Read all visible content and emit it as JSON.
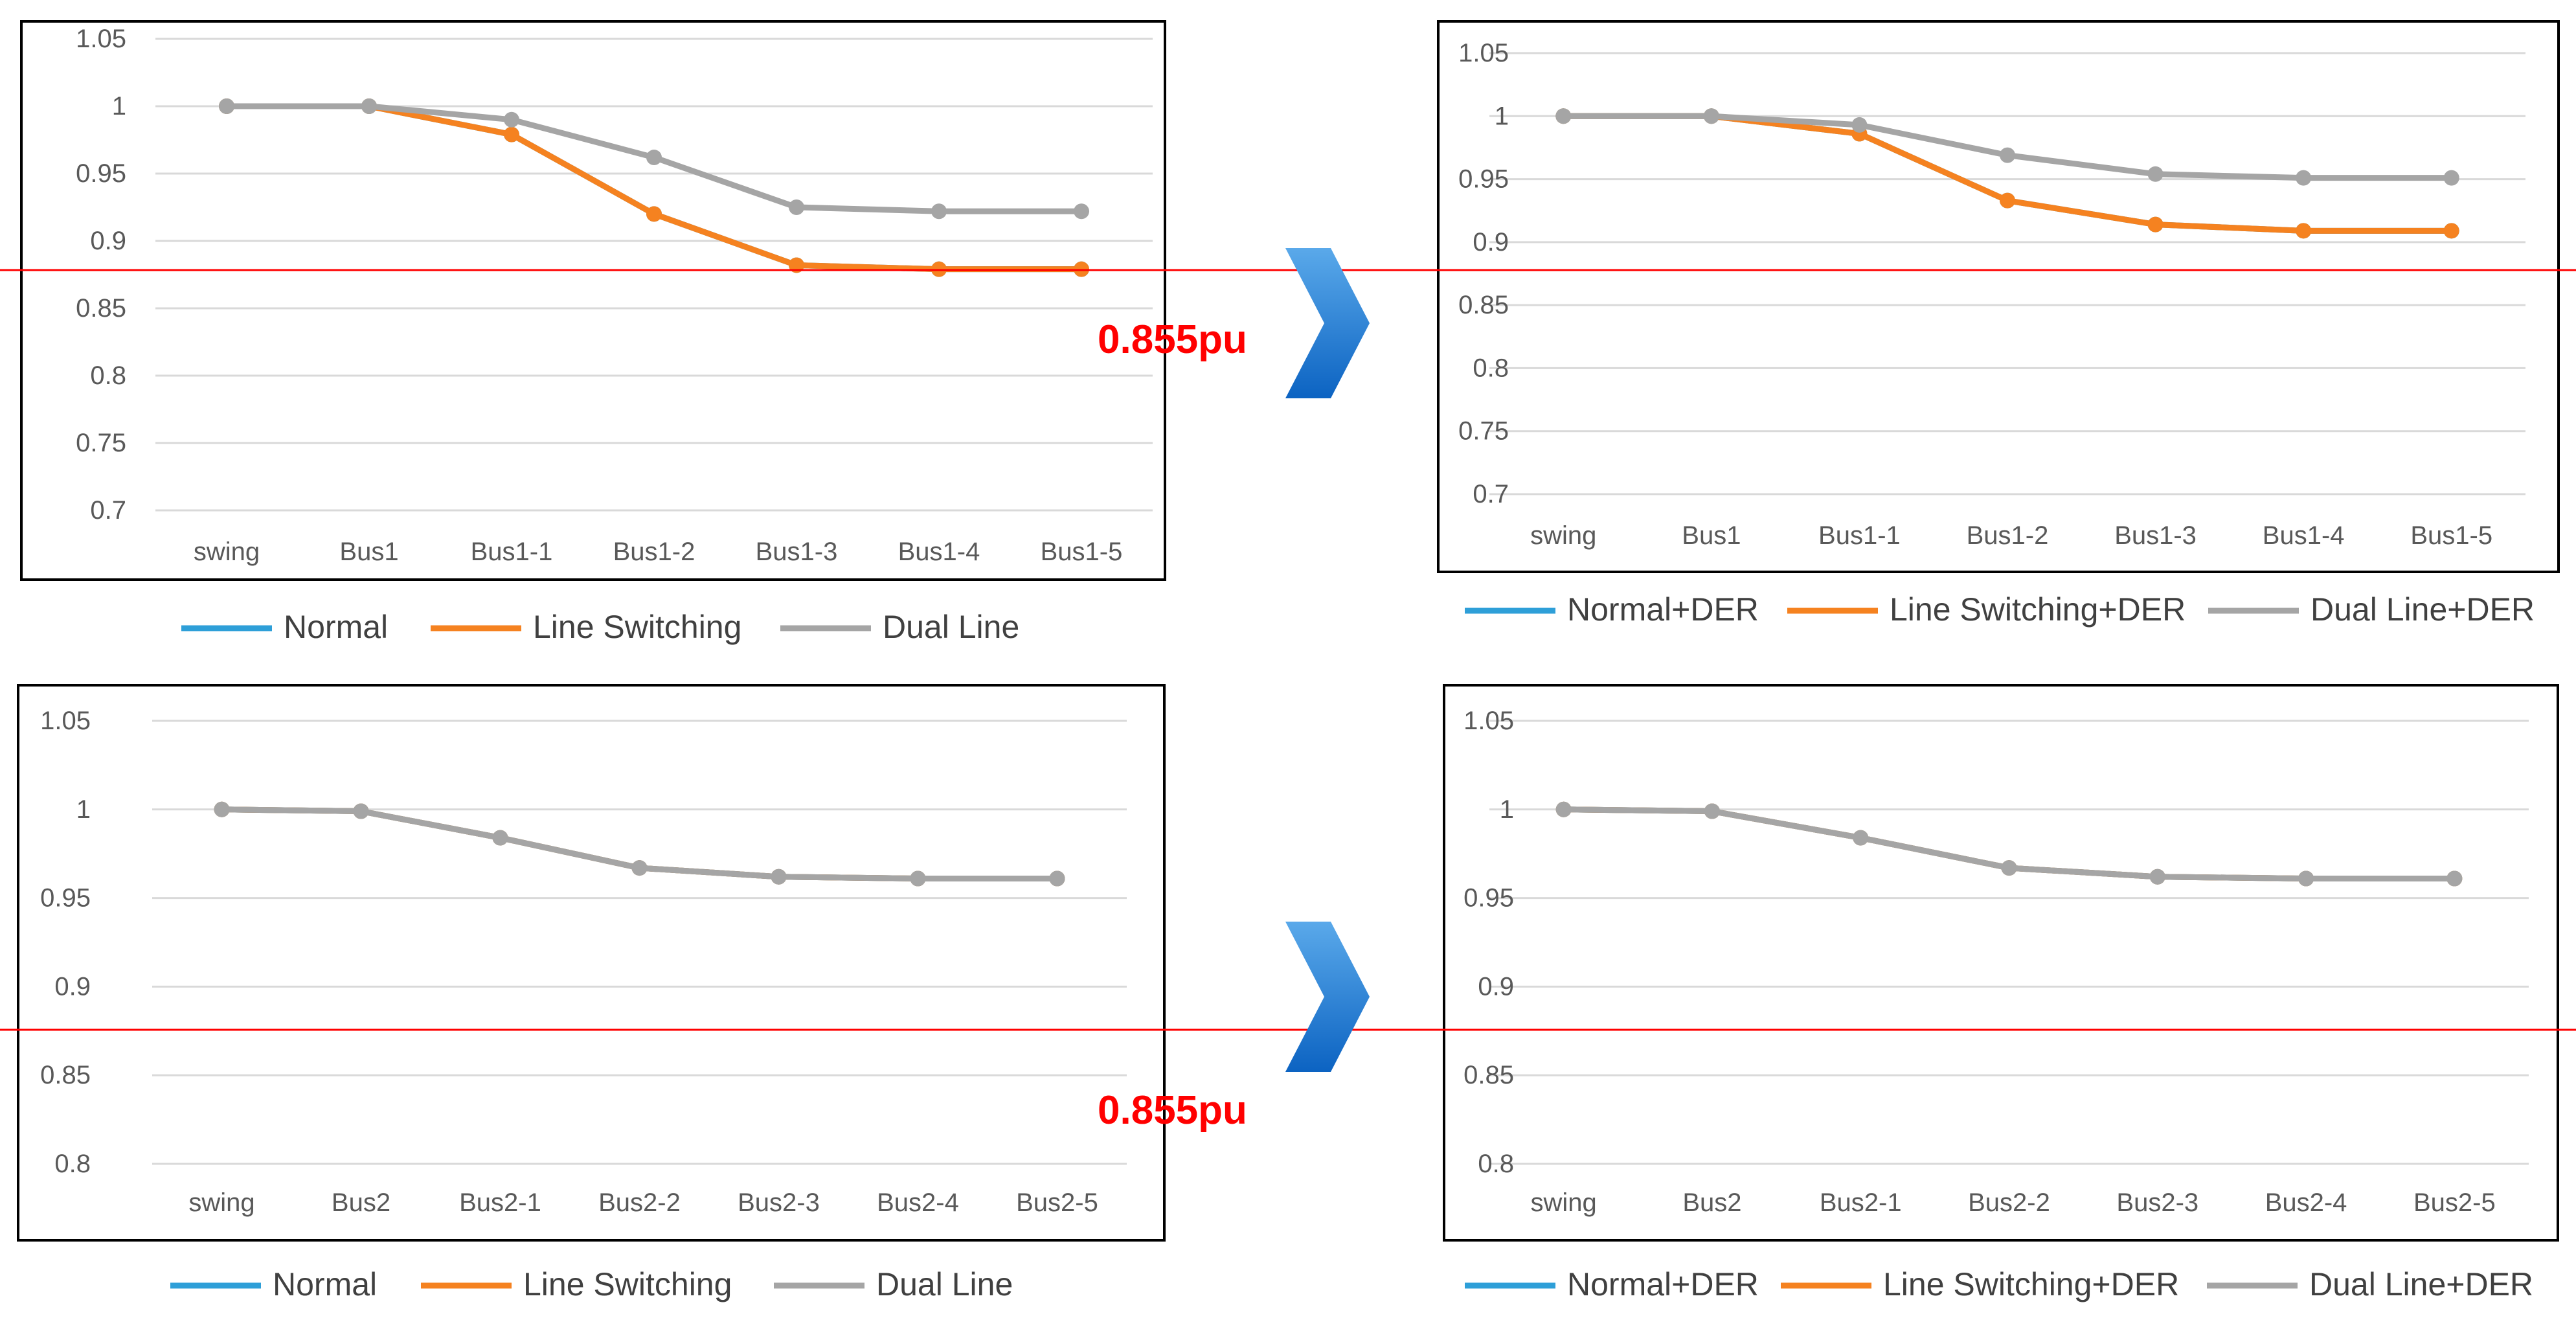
{
  "threshold": {
    "label": "0.855pu",
    "color": "#ff0000"
  },
  "series_colors": {
    "Normal": "#2e9fd8",
    "Line Switching": "#f58220",
    "Dual Line": "#a5a5a5"
  },
  "chart_data": [
    {
      "type": "line",
      "categories": [
        "swing",
        "Bus1",
        "Bus1-1",
        "Bus1-2",
        "Bus1-3",
        "Bus1-4",
        "Bus1-5"
      ],
      "ylim": [
        0.7,
        1.05
      ],
      "yticks": [
        "1.05",
        "1",
        "0.95",
        "0.9",
        "0.85",
        "0.8",
        "0.75",
        "0.7"
      ],
      "series": [
        {
          "name": "Normal",
          "values": [
            1.0,
            1.0,
            0.979,
            0.92,
            0.882,
            0.879,
            0.879
          ]
        },
        {
          "name": "Line Switching",
          "values": [
            1.0,
            1.0,
            0.979,
            0.92,
            0.882,
            0.879,
            0.879
          ]
        },
        {
          "name": "Dual Line",
          "values": [
            1.0,
            1.0,
            0.99,
            0.962,
            0.925,
            0.922,
            0.922
          ]
        }
      ],
      "legend": [
        "Normal",
        "Line Switching",
        "Dual Line"
      ]
    },
    {
      "type": "line",
      "categories": [
        "swing",
        "Bus1",
        "Bus1-1",
        "Bus1-2",
        "Bus1-3",
        "Bus1-4",
        "Bus1-5"
      ],
      "ylim": [
        0.7,
        1.05
      ],
      "yticks": [
        "1.05",
        "1",
        "0.95",
        "0.9",
        "0.85",
        "0.8",
        "0.75",
        "0.7"
      ],
      "series": [
        {
          "name": "Normal+DER",
          "values": [
            1.0,
            1.0,
            0.986,
            0.933,
            0.914,
            0.909,
            0.909
          ]
        },
        {
          "name": "Line Switching+DER",
          "values": [
            1.0,
            1.0,
            0.986,
            0.933,
            0.914,
            0.909,
            0.909
          ]
        },
        {
          "name": "Dual Line+DER",
          "values": [
            1.0,
            1.0,
            0.993,
            0.969,
            0.954,
            0.951,
            0.951
          ]
        }
      ],
      "legend": [
        "Normal+DER",
        "Line Switching+DER",
        "Dual Line+DER"
      ]
    },
    {
      "type": "line",
      "categories": [
        "swing",
        "Bus2",
        "Bus2-1",
        "Bus2-2",
        "Bus2-3",
        "Bus2-4",
        "Bus2-5"
      ],
      "ylim": [
        0.8,
        1.05
      ],
      "yticks": [
        "1.05",
        "1",
        "0.95",
        "0.9",
        "0.85",
        "0.8"
      ],
      "series": [
        {
          "name": "Normal",
          "values": [
            1.0,
            0.999,
            0.984,
            0.967,
            0.962,
            0.961,
            0.961
          ]
        },
        {
          "name": "Line Switching",
          "values": [
            1.0,
            0.999,
            0.984,
            0.967,
            0.962,
            0.961,
            0.961
          ]
        },
        {
          "name": "Dual Line",
          "values": [
            1.0,
            0.999,
            0.984,
            0.967,
            0.962,
            0.961,
            0.961
          ]
        }
      ],
      "legend": [
        "Normal",
        "Line Switching",
        "Dual Line"
      ]
    },
    {
      "type": "line",
      "categories": [
        "swing",
        "Bus2",
        "Bus2-1",
        "Bus2-2",
        "Bus2-3",
        "Bus2-4",
        "Bus2-5"
      ],
      "ylim": [
        0.8,
        1.05
      ],
      "yticks": [
        "1.05",
        "1",
        "0.95",
        "0.9",
        "0.85",
        "0.8"
      ],
      "series": [
        {
          "name": "Normal+DER",
          "values": [
            1.0,
            0.999,
            0.984,
            0.967,
            0.962,
            0.961,
            0.961
          ]
        },
        {
          "name": "Line Switching+DER",
          "values": [
            1.0,
            0.999,
            0.984,
            0.967,
            0.962,
            0.961,
            0.961
          ]
        },
        {
          "name": "Dual Line+DER",
          "values": [
            1.0,
            0.999,
            0.984,
            0.967,
            0.962,
            0.961,
            0.961
          ]
        }
      ],
      "legend": [
        "Normal+DER",
        "Line Switching+DER",
        "Dual Line+DER"
      ]
    }
  ]
}
